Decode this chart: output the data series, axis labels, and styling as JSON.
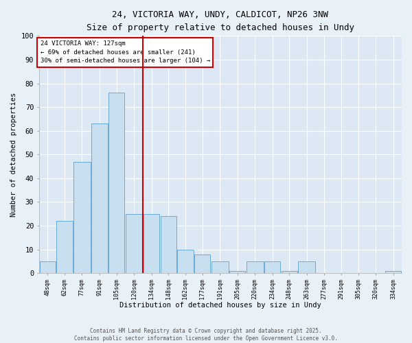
{
  "title_line1": "24, VICTORIA WAY, UNDY, CALDICOT, NP26 3NW",
  "title_line2": "Size of property relative to detached houses in Undy",
  "xlabel": "Distribution of detached houses by size in Undy",
  "ylabel": "Number of detached properties",
  "annotation_title": "24 VICTORIA WAY: 127sqm",
  "annotation_line2": "← 69% of detached houses are smaller (241)",
  "annotation_line3": "30% of semi-detached houses are larger (104) →",
  "property_size": 127,
  "bar_color": "#c8dff0",
  "bar_edge_color": "#6aaad4",
  "vline_color": "#cc0000",
  "annotation_box_color": "#cc0000",
  "background_color": "#dce9f5",
  "grid_color": "#ffffff",
  "fig_background": "#e8f0f8",
  "categories": [
    "48sqm",
    "62sqm",
    "77sqm",
    "91sqm",
    "105sqm",
    "120sqm",
    "134sqm",
    "148sqm",
    "162sqm",
    "177sqm",
    "191sqm",
    "205sqm",
    "220sqm",
    "234sqm",
    "248sqm",
    "263sqm",
    "277sqm",
    "291sqm",
    "305sqm",
    "320sqm",
    "334sqm"
  ],
  "bin_edges": [
    41,
    55,
    69,
    84,
    98,
    112,
    127,
    141,
    155,
    169,
    183,
    198,
    212,
    227,
    241,
    255,
    270,
    284,
    298,
    312,
    327,
    341
  ],
  "values": [
    5,
    22,
    47,
    63,
    76,
    25,
    25,
    24,
    10,
    8,
    5,
    1,
    5,
    5,
    1,
    5,
    0,
    0,
    0,
    0,
    1
  ],
  "ylim": [
    0,
    100
  ],
  "yticks": [
    0,
    10,
    20,
    30,
    40,
    50,
    60,
    70,
    80,
    90,
    100
  ],
  "footer_line1": "Contains HM Land Registry data © Crown copyright and database right 2025.",
  "footer_line2": "Contains public sector information licensed under the Open Government Licence v3.0."
}
